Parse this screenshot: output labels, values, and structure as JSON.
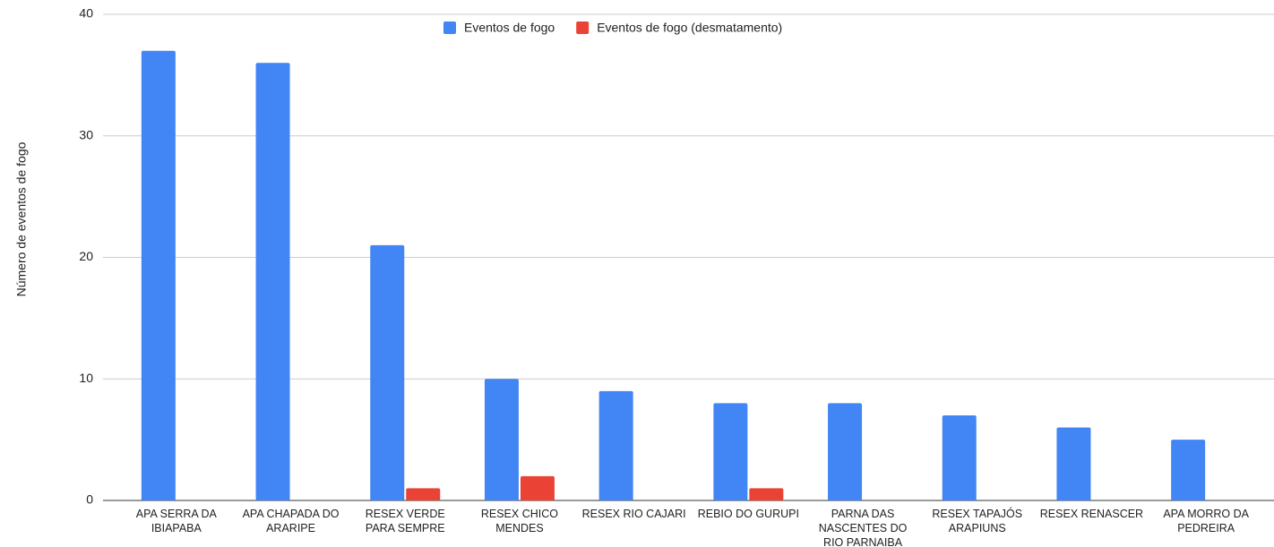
{
  "chart_data": {
    "type": "bar",
    "y_label": "Número de eventos de fogo",
    "categories": [
      "APA SERRA DA IBIAPABA",
      "APA CHAPADA DO ARARIPE",
      "RESEX VERDE PARA SEMPRE",
      "RESEX CHICO MENDES",
      "RESEX RIO CAJARI",
      "REBIO DO GURUPI",
      "PARNA DAS NASCENTES DO RIO PARNAIBA",
      "RESEX TAPAJÓS ARAPIUNS",
      "RESEX RENASCER",
      "APA MORRO DA PEDREIRA"
    ],
    "series": [
      {
        "name": "Eventos de fogo",
        "color": "#4285f4",
        "values": [
          37,
          36,
          21,
          10,
          9,
          8,
          8,
          7,
          6,
          5
        ]
      },
      {
        "name": "Eventos de fogo (desmatamento)",
        "color": "#ea4335",
        "values": [
          0,
          0,
          1,
          2,
          0,
          1,
          0,
          0,
          0,
          0
        ]
      }
    ],
    "ylim": [
      0,
      40
    ],
    "yticks": [
      0,
      10,
      20,
      30,
      40
    ],
    "grid": true,
    "legend": "top"
  }
}
